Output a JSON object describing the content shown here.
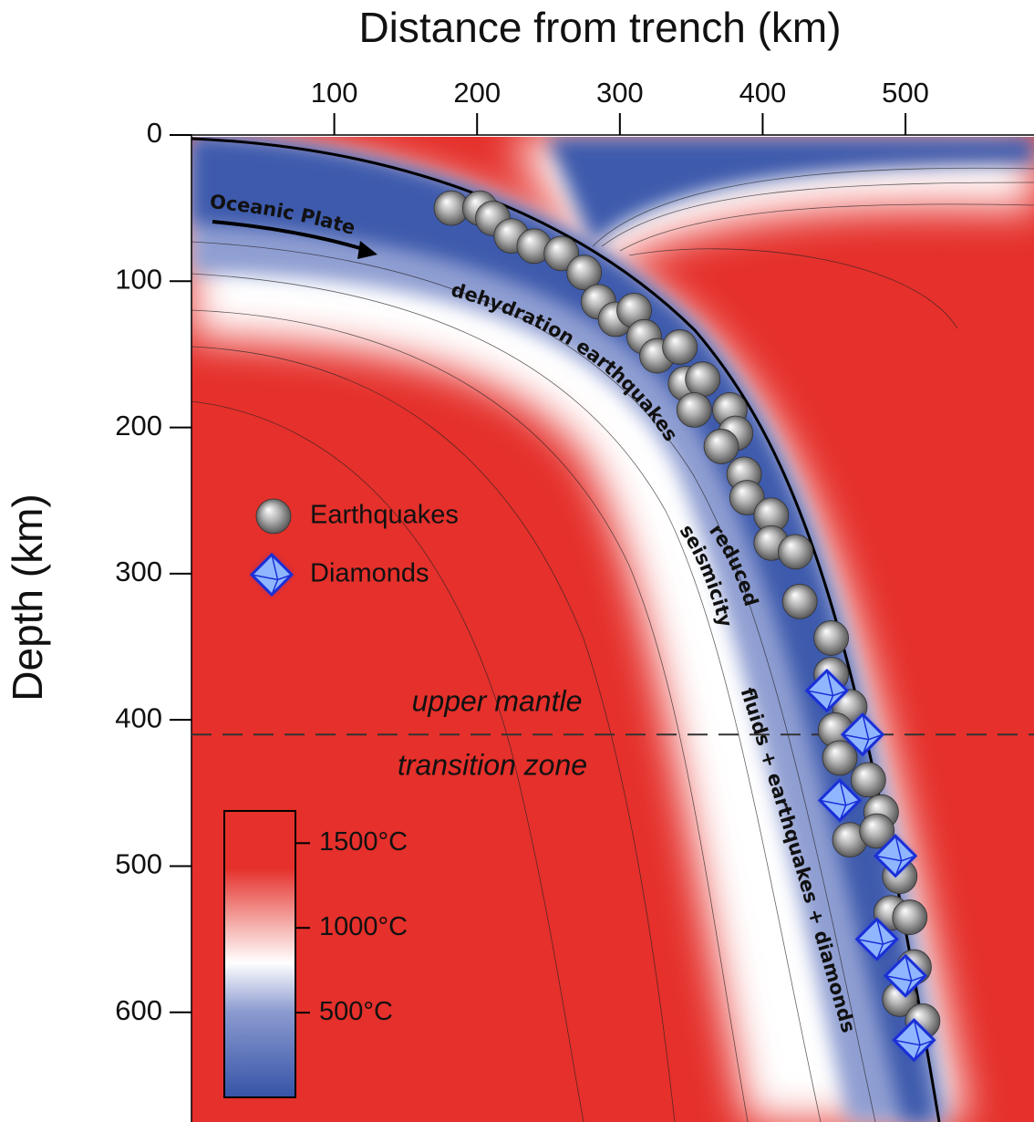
{
  "chart_data": {
    "type": "scatter",
    "x_label": "Distance from trench (km)",
    "y_label": "Depth (km)",
    "xlim": [
      0,
      590
    ],
    "ylim": [
      0,
      675
    ],
    "xticks": [
      100,
      200,
      300,
      400,
      500
    ],
    "yticks": [
      0,
      100,
      200,
      300,
      400,
      500,
      600
    ],
    "series": [
      {
        "name": "Earthquakes",
        "marker": "sphere",
        "x": [
          182,
          202,
          211,
          224,
          240,
          259,
          275,
          285,
          297,
          310,
          317,
          326,
          342,
          346,
          358,
          352,
          377,
          381,
          371,
          387,
          389,
          406,
          406,
          423,
          426,
          448,
          448,
          461,
          451,
          454,
          474,
          483,
          461,
          480,
          496,
          490,
          503,
          506,
          496,
          512
        ],
        "y": [
          50,
          50,
          57,
          69,
          76,
          81,
          94,
          114,
          126,
          120,
          138,
          151,
          145,
          170,
          167,
          188,
          188,
          204,
          213,
          232,
          248,
          260,
          279,
          285,
          319,
          344,
          369,
          391,
          407,
          426,
          441,
          463,
          482,
          476,
          507,
          532,
          535,
          569,
          591,
          606
        ]
      },
      {
        "name": "Diamonds",
        "marker": "diamond",
        "x": [
          445,
          470,
          454,
          493,
          480,
          500,
          506
        ],
        "y": [
          380,
          410,
          455,
          493,
          550,
          575,
          619
        ]
      }
    ],
    "boundary_depth": 410,
    "annotations": {
      "plate": "Oceanic Plate",
      "dehydration": "dehydration earthquakes",
      "reduced": [
        "reduced",
        "seismicity"
      ],
      "fluids": "fluids + earthquakes + diamonds",
      "upper": "upper mantle",
      "transition": "transition zone"
    },
    "colorbar": {
      "lim": [
        0,
        1690
      ],
      "ticks": [
        {
          "value": 1500,
          "label": "1500°C"
        },
        {
          "value": 1000,
          "label": "1000°C"
        },
        {
          "value": 500,
          "label": "500°C"
        }
      ]
    }
  }
}
